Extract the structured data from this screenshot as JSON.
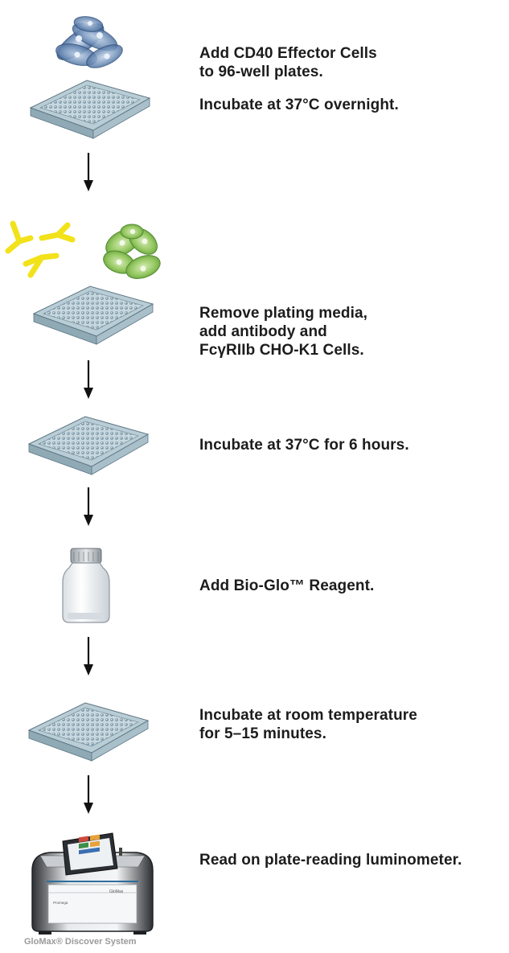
{
  "steps": [
    {
      "lines": [
        "Add CD40 Effector Cells",
        "to 96-well plates."
      ],
      "extra": "Incubate at 37°C overnight."
    },
    {
      "lines": [
        "Remove plating media,",
        "add antibody and",
        "FcγRIIb CHO-K1 Cells."
      ]
    },
    {
      "lines": [
        "Incubate at 37°C for 6 hours."
      ]
    },
    {
      "lines": [
        "Add Bio-Glo™ Reagent."
      ]
    },
    {
      "lines": [
        "Incubate at room temperature",
        "for 5–15 minutes."
      ]
    },
    {
      "lines": [
        "Read on plate-reading luminometer."
      ]
    }
  ],
  "instrument": {
    "caption": "GloMax® Discover System",
    "front_label": "GloMax",
    "brand_label": "Promega"
  },
  "colors": {
    "plate": "#b9cdd6",
    "effector_cells": "#4a6f9c",
    "target_cells": "#8fc05a",
    "antibody": "#f2e21a",
    "arrow": "#111111"
  },
  "icons": [
    "effector-cells-icon",
    "antibody-icon",
    "target-cells-icon",
    "well-plate-icon",
    "reagent-bottle-icon",
    "luminometer-icon"
  ]
}
